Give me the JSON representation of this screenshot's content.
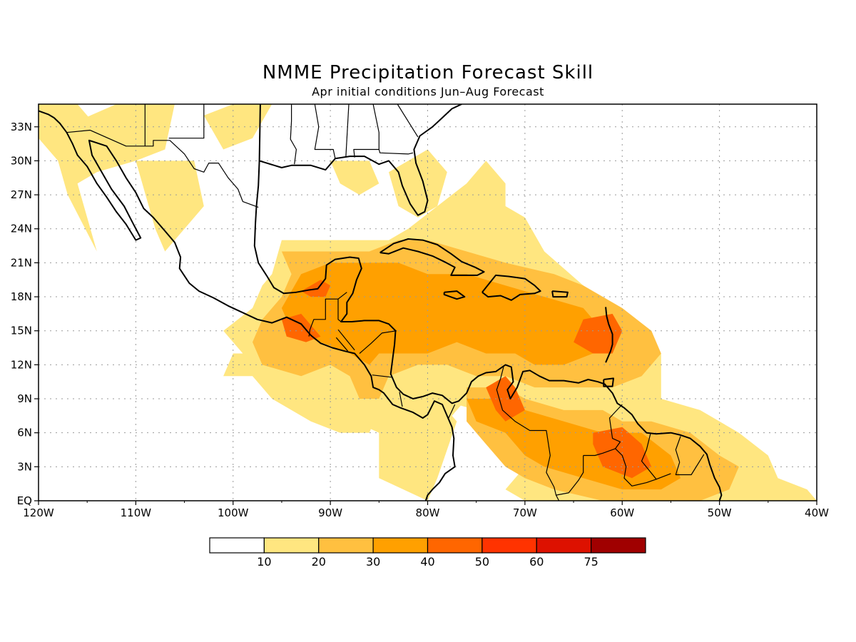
{
  "title": "NMME Precipitation Forecast Skill",
  "subtitle": "Apr initial conditions  Jun–Aug Forecast",
  "chart_data": {
    "type": "heatmap",
    "title": "NMME Precipitation Forecast Skill",
    "subtitle": "Apr initial conditions  Jun–Aug Forecast",
    "lon_range": [
      -120,
      -40
    ],
    "lat_range": [
      0,
      35
    ],
    "x_ticks": [
      {
        "value": -120,
        "label": "120W"
      },
      {
        "value": -110,
        "label": "110W"
      },
      {
        "value": -100,
        "label": "100W"
      },
      {
        "value": -90,
        "label": "90W"
      },
      {
        "value": -80,
        "label": "80W"
      },
      {
        "value": -70,
        "label": "70W"
      },
      {
        "value": -60,
        "label": "60W"
      },
      {
        "value": -50,
        "label": "50W"
      },
      {
        "value": -40,
        "label": "40W"
      }
    ],
    "y_ticks": [
      {
        "value": 0,
        "label": "EQ"
      },
      {
        "value": 3,
        "label": "3N"
      },
      {
        "value": 6,
        "label": "6N"
      },
      {
        "value": 9,
        "label": "9N"
      },
      {
        "value": 12,
        "label": "12N"
      },
      {
        "value": 15,
        "label": "15N"
      },
      {
        "value": 18,
        "label": "18N"
      },
      {
        "value": 21,
        "label": "21N"
      },
      {
        "value": 24,
        "label": "24N"
      },
      {
        "value": 27,
        "label": "27N"
      },
      {
        "value": 30,
        "label": "30N"
      },
      {
        "value": 33,
        "label": "33N"
      }
    ],
    "grid": true,
    "colorbar": {
      "colors": [
        "#ffffff",
        "#ffe680",
        "#ffc040",
        "#ffa000",
        "#ff6600",
        "#ff3300",
        "#dd1100",
        "#a00000"
      ],
      "labels": [
        "10",
        "20",
        "30",
        "40",
        "50",
        "60",
        "75"
      ]
    },
    "levels": [
      {
        "name": "10-20",
        "color": "#ffe680",
        "regions": [
          [
            [
              -120,
              35
            ],
            [
              -116,
              35
            ],
            [
              -114,
              33
            ],
            [
              -117,
              32
            ],
            [
              -120,
              32
            ]
          ],
          [
            [
              -112,
              35
            ],
            [
              -106,
              35
            ],
            [
              -107,
              31
            ],
            [
              -110,
              30
            ],
            [
              -114,
              29
            ],
            [
              -116,
              28
            ],
            [
              -115,
              25
            ],
            [
              -114,
              22
            ],
            [
              -117,
              27
            ],
            [
              -118,
              30
            ],
            [
              -120,
              32
            ]
          ],
          [
            [
              -110,
              30
            ],
            [
              -104,
              30
            ],
            [
              -103,
              26
            ],
            [
              -105,
              24
            ],
            [
              -107,
              22
            ],
            [
              -108,
              24
            ],
            [
              -109,
              27
            ]
          ],
          [
            [
              -103,
              34
            ],
            [
              -100,
              35
            ],
            [
              -96,
              35
            ],
            [
              -98,
              32
            ],
            [
              -101,
              31
            ]
          ],
          [
            [
              -90,
              30
            ],
            [
              -86,
              30
            ],
            [
              -85,
              28
            ],
            [
              -87,
              27
            ],
            [
              -89,
              28
            ]
          ],
          [
            [
              -84,
              29
            ],
            [
              -80,
              31
            ],
            [
              -78,
              29
            ],
            [
              -79,
              26
            ],
            [
              -81,
              25
            ],
            [
              -83,
              26
            ]
          ],
          [
            [
              -86,
              14
            ],
            [
              -80,
              14
            ],
            [
              -77,
              12
            ],
            [
              -76,
              9
            ],
            [
              -78,
              7
            ],
            [
              -81,
              7
            ],
            [
              -83,
              8
            ],
            [
              -85,
              10
            ]
          ],
          [
            [
              -101,
              11
            ],
            [
              -98,
              11
            ],
            [
              -96,
              9
            ],
            [
              -92,
              7
            ],
            [
              -89,
              6
            ],
            [
              -86,
              6
            ],
            [
              -85,
              8
            ],
            [
              -86,
              10
            ],
            [
              -88,
              14
            ],
            [
              -91,
              13
            ],
            [
              -96,
              13
            ],
            [
              -100,
              13
            ]
          ],
          [
            [
              -82,
              24
            ],
            [
              -76,
              28
            ],
            [
              -74,
              30
            ],
            [
              -72,
              28
            ],
            [
              -72,
              26
            ],
            [
              -70,
              25
            ],
            [
              -68,
              22
            ],
            [
              -64,
              19
            ],
            [
              -60,
              16
            ],
            [
              -56,
              13
            ],
            [
              -56,
              9
            ],
            [
              -52,
              8
            ],
            [
              -48,
              6
            ],
            [
              -45,
              4
            ],
            [
              -44,
              2
            ],
            [
              -41,
              1
            ],
            [
              -40,
              0
            ],
            [
              -70,
              0
            ],
            [
              -72,
              1
            ],
            [
              -70,
              3
            ],
            [
              -72,
              5
            ],
            [
              -75,
              8
            ],
            [
              -79,
              9
            ],
            [
              -77,
              7
            ],
            [
              -79,
              2
            ],
            [
              -80,
              0
            ],
            [
              -85,
              2
            ],
            [
              -85,
              6
            ],
            [
              -90,
              8
            ],
            [
              -96,
              13
            ],
            [
              -99,
              13
            ],
            [
              -101,
              15
            ],
            [
              -98,
              17
            ],
            [
              -97,
              19
            ],
            [
              -96,
              20
            ],
            [
              -95,
              23
            ],
            [
              -88,
              23
            ],
            [
              -84,
              23
            ]
          ]
        ]
      },
      {
        "name": "20-30",
        "color": "#ffc040",
        "regions": [
          [
            [
              -95,
              22
            ],
            [
              -89,
              22
            ],
            [
              -86,
              22
            ],
            [
              -83,
              23
            ],
            [
              -80,
              23
            ],
            [
              -76,
              22
            ],
            [
              -72,
              21
            ],
            [
              -67,
              20
            ],
            [
              -64,
              19
            ],
            [
              -60,
              17
            ],
            [
              -57,
              15
            ],
            [
              -56,
              13
            ],
            [
              -58,
              11
            ],
            [
              -61,
              10
            ],
            [
              -65,
              10
            ],
            [
              -69,
              10
            ],
            [
              -72,
              11
            ],
            [
              -75,
              11
            ],
            [
              -78,
              12
            ],
            [
              -81,
              12
            ],
            [
              -84,
              11
            ],
            [
              -85,
              9
            ],
            [
              -87,
              9
            ],
            [
              -88,
              11
            ],
            [
              -90,
              12
            ],
            [
              -93,
              11
            ],
            [
              -97,
              12
            ],
            [
              -98,
              14
            ],
            [
              -97,
              16
            ],
            [
              -95,
              18
            ],
            [
              -94,
              20
            ]
          ],
          [
            [
              -76,
              10
            ],
            [
              -72,
              10
            ],
            [
              -70,
              9
            ],
            [
              -66,
              8
            ],
            [
              -62,
              8
            ],
            [
              -60,
              7
            ],
            [
              -57,
              7
            ],
            [
              -53,
              6
            ],
            [
              -50,
              4
            ],
            [
              -48,
              3
            ],
            [
              -49,
              1
            ],
            [
              -52,
              0
            ],
            [
              -62,
              0
            ],
            [
              -67,
              1
            ],
            [
              -70,
              2
            ],
            [
              -72,
              3
            ],
            [
              -74,
              5
            ],
            [
              -76,
              7
            ]
          ]
        ]
      },
      {
        "name": "30-40",
        "color": "#ffa000",
        "regions": [
          [
            [
              -93,
              20
            ],
            [
              -90,
              21
            ],
            [
              -86,
              21
            ],
            [
              -83,
              21
            ],
            [
              -80,
              20
            ],
            [
              -76,
              20
            ],
            [
              -72,
              19
            ],
            [
              -68,
              18
            ],
            [
              -64,
              17
            ],
            [
              -62,
              15
            ],
            [
              -63,
              13
            ],
            [
              -66,
              12
            ],
            [
              -69,
              12
            ],
            [
              -71,
              13
            ],
            [
              -74,
              13
            ],
            [
              -77,
              14
            ],
            [
              -80,
              13
            ],
            [
              -83,
              13
            ],
            [
              -85,
              13
            ],
            [
              -86,
              12
            ],
            [
              -88,
              13
            ],
            [
              -91,
              14
            ],
            [
              -94,
              15
            ],
            [
              -95,
              17
            ]
          ],
          [
            [
              -76,
              9
            ],
            [
              -72,
              9
            ],
            [
              -70,
              8
            ],
            [
              -66,
              7
            ],
            [
              -62,
              6
            ],
            [
              -58,
              6
            ],
            [
              -55,
              4
            ],
            [
              -54,
              2
            ],
            [
              -56,
              1
            ],
            [
              -60,
              1
            ],
            [
              -64,
              2
            ],
            [
              -68,
              3
            ],
            [
              -70,
              4
            ],
            [
              -72,
              6
            ],
            [
              -75,
              7
            ]
          ]
        ]
      },
      {
        "name": "40-50",
        "color": "#ff6600",
        "regions": [
          [
            [
              -92,
              19
            ],
            [
              -91,
              19.5
            ],
            [
              -90,
              19
            ],
            [
              -90.5,
              18
            ],
            [
              -92,
              18
            ],
            [
              -93,
              18.5
            ]
          ],
          [
            [
              -95,
              16
            ],
            [
              -93,
              16.5
            ],
            [
              -92,
              15.5
            ],
            [
              -91,
              14.5
            ],
            [
              -92.5,
              14
            ],
            [
              -94.5,
              14.5
            ]
          ],
          [
            [
              -64,
              16
            ],
            [
              -61,
              16.5
            ],
            [
              -60,
              15
            ],
            [
              -61,
              13
            ],
            [
              -63,
              13
            ],
            [
              -65,
              14
            ]
          ],
          [
            [
              -74,
              10
            ],
            [
              -72,
              11
            ],
            [
              -71,
              10
            ],
            [
              -70,
              8
            ],
            [
              -72,
              7
            ],
            [
              -73,
              8
            ]
          ],
          [
            [
              -63,
              6
            ],
            [
              -60,
              6.5
            ],
            [
              -58,
              5
            ],
            [
              -57,
              3
            ],
            [
              -59,
              2
            ],
            [
              -62,
              3
            ],
            [
              -63,
              5
            ]
          ]
        ]
      }
    ]
  }
}
